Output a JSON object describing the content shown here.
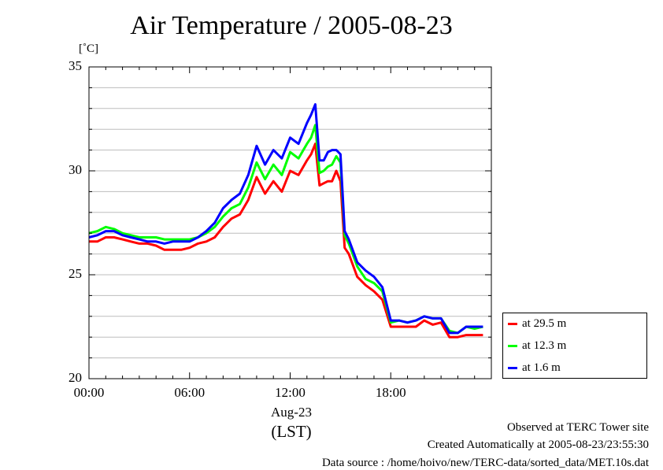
{
  "title": "Air Temperature / 2005-08-23",
  "unit_label": "[˚C]",
  "footer": {
    "line1": "Observed at TERC Tower site",
    "line2": "Created Automatically at 2005-08-23/23:55:30",
    "line3": "Data source : /home/hoivo/new/TERC-data/sorted_data/MET.10s.dat"
  },
  "x_axis": {
    "date_label": "Aug-23",
    "tz_label": "(LST)"
  },
  "chart_data": {
    "type": "line",
    "title": "Air Temperature / 2005-08-23",
    "ylabel": "[˚C]",
    "xlabel": "(LST)",
    "ylim": [
      20,
      35
    ],
    "xlim": [
      0,
      24
    ],
    "yticks": [
      "20",
      "25",
      "30",
      "35"
    ],
    "xticks": [
      "00:00",
      "06:00",
      "12:00",
      "18:00"
    ],
    "grid": true,
    "legend_position": "bottom-right outside",
    "x": [
      0,
      0.5,
      1,
      1.5,
      2,
      2.5,
      3,
      3.5,
      4,
      4.5,
      5,
      5.5,
      6,
      6.5,
      7,
      7.5,
      8,
      8.5,
      9,
      9.5,
      10,
      10.5,
      11,
      11.5,
      12,
      12.5,
      13,
      13.25,
      13.5,
      13.75,
      14,
      14.25,
      14.5,
      14.75,
      15,
      15.25,
      15.5,
      16,
      16.5,
      17,
      17.5,
      18,
      18.5,
      19,
      19.5,
      20,
      20.5,
      21,
      21.5,
      22,
      22.5,
      23,
      23.5
    ],
    "series": [
      {
        "name": "at 29.5 m",
        "color": "#ff0000",
        "values": [
          26.6,
          26.6,
          26.8,
          26.8,
          26.7,
          26.6,
          26.5,
          26.5,
          26.4,
          26.2,
          26.2,
          26.2,
          26.3,
          26.5,
          26.6,
          26.8,
          27.3,
          27.7,
          27.9,
          28.6,
          29.7,
          28.9,
          29.5,
          29.0,
          30.0,
          29.8,
          30.5,
          30.8,
          31.3,
          29.3,
          29.4,
          29.5,
          29.5,
          30.0,
          29.5,
          26.3,
          26.0,
          24.9,
          24.5,
          24.2,
          23.8,
          22.5,
          22.5,
          22.5,
          22.5,
          22.8,
          22.6,
          22.7,
          22.0,
          22.0,
          22.1,
          22.1,
          22.1
        ]
      },
      {
        "name": "at 12.3 m",
        "color": "#00ff00",
        "values": [
          27.0,
          27.1,
          27.3,
          27.2,
          27.0,
          26.9,
          26.8,
          26.8,
          26.8,
          26.7,
          26.7,
          26.7,
          26.7,
          26.8,
          27.0,
          27.3,
          27.8,
          28.2,
          28.4,
          29.2,
          30.4,
          29.6,
          30.3,
          29.8,
          30.9,
          30.6,
          31.3,
          31.6,
          32.2,
          29.9,
          30.0,
          30.2,
          30.3,
          30.7,
          30.4,
          26.9,
          26.5,
          25.4,
          24.8,
          24.6,
          24.2,
          22.7,
          22.8,
          22.7,
          22.8,
          23.0,
          22.9,
          22.9,
          22.3,
          22.2,
          22.5,
          22.4,
          22.5
        ]
      },
      {
        "name": "at 1.6 m",
        "color": "#0000ff",
        "values": [
          26.8,
          26.9,
          27.1,
          27.1,
          26.9,
          26.8,
          26.7,
          26.6,
          26.6,
          26.5,
          26.6,
          26.6,
          26.6,
          26.8,
          27.1,
          27.5,
          28.2,
          28.6,
          28.9,
          29.8,
          31.2,
          30.3,
          31.0,
          30.6,
          31.6,
          31.3,
          32.3,
          32.7,
          33.2,
          30.5,
          30.5,
          30.9,
          31.0,
          31.0,
          30.8,
          27.1,
          26.7,
          25.6,
          25.2,
          24.9,
          24.4,
          22.8,
          22.8,
          22.7,
          22.8,
          23.0,
          22.9,
          22.9,
          22.2,
          22.2,
          22.5,
          22.5,
          22.5
        ]
      }
    ]
  }
}
